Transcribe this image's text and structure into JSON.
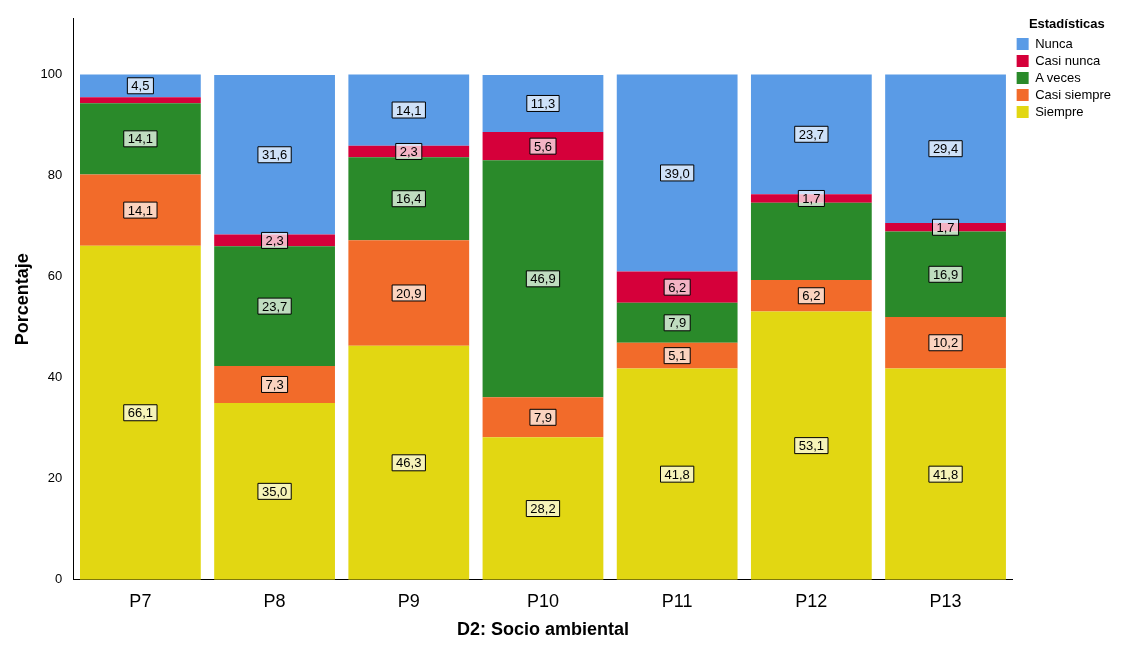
{
  "chart_data": {
    "type": "bar",
    "stacked": true,
    "xlabel": "D2: Socio ambiental",
    "ylabel": "Porcentaje",
    "legend_title": "Estadísticas",
    "legend": "top right",
    "grid": false,
    "categories": [
      "P7",
      "P8",
      "P9",
      "P10",
      "P11",
      "P12",
      "P13"
    ],
    "ylim": [
      0,
      111
    ],
    "yticks": [
      0,
      20,
      40,
      60,
      80,
      100
    ],
    "series": [
      {
        "name": "Siempre",
        "color": "#e2d712",
        "values": [
          66.1,
          35.0,
          46.3,
          28.2,
          41.8,
          53.1,
          41.8
        ],
        "value_labels": [
          "66,1",
          "35,0",
          "46,3",
          "28,2",
          "41,8",
          "53,1",
          "41,8"
        ]
      },
      {
        "name": "Casi siempre",
        "color": "#f26b2a",
        "values": [
          14.1,
          7.3,
          20.9,
          7.9,
          5.1,
          6.2,
          10.2
        ],
        "value_labels": [
          "14,1",
          "7,3",
          "20,9",
          "7,9",
          "5,1",
          "6,2",
          "10,2"
        ]
      },
      {
        "name": "A veces",
        "color": "#2a8a2a",
        "values": [
          14.1,
          23.7,
          16.4,
          46.9,
          7.9,
          15.3,
          16.9
        ],
        "value_labels": [
          "14,1",
          "23,7",
          "16,4",
          "46,9",
          "7,9",
          null,
          "16,9"
        ]
      },
      {
        "name": "Casi nunca",
        "color": "#d5003a",
        "values": [
          1.2,
          2.3,
          2.3,
          5.6,
          6.2,
          1.7,
          1.7
        ],
        "value_labels": [
          null,
          "2,3",
          "2,3",
          "5,6",
          "6,2",
          "1,7",
          "1,7"
        ]
      },
      {
        "name": "Nunca",
        "color": "#5a9be6",
        "values": [
          4.5,
          31.6,
          14.1,
          11.3,
          39.0,
          23.7,
          29.4
        ],
        "value_labels": [
          "4,5",
          "31,6",
          "14,1",
          "11,3",
          "39,0",
          "23,7",
          "29,4"
        ]
      }
    ]
  }
}
